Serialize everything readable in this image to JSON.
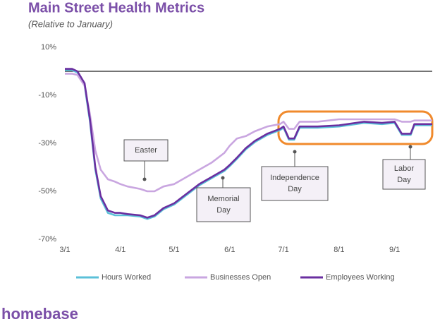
{
  "chart_data": {
    "type": "line",
    "title": "Main Street Health Metrics",
    "subtitle": "(Relative to January)",
    "brand": "homebase",
    "x": [
      "3/1",
      "3/5",
      "3/8",
      "3/12",
      "3/15",
      "3/18",
      "3/21",
      "3/25",
      "3/29",
      "4/1",
      "4/5",
      "4/12",
      "4/16",
      "4/20",
      "4/25",
      "5/1",
      "5/8",
      "5/15",
      "5/22",
      "5/29",
      "6/1",
      "6/5",
      "6/10",
      "6/15",
      "6/22",
      "6/29",
      "7/1",
      "7/4",
      "7/7",
      "7/10",
      "7/20",
      "8/1",
      "8/15",
      "8/25",
      "9/1",
      "9/5",
      "9/10",
      "9/12",
      "9/22"
    ],
    "xlim": [
      "3/1",
      "9/22"
    ],
    "xticks": [
      "3/1",
      "4/1",
      "5/1",
      "6/1",
      "7/1",
      "8/1",
      "9/1"
    ],
    "ylim": [
      -70,
      10
    ],
    "yticks": [
      {
        "value": 10,
        "label": "10%"
      },
      {
        "value": -10,
        "label": "-10%"
      },
      {
        "value": -30,
        "label": "-30%"
      },
      {
        "value": -50,
        "label": "-50%"
      },
      {
        "value": -70,
        "label": "-70%"
      }
    ],
    "reference_line": 0,
    "series": [
      {
        "name": "Hours Worked",
        "color": "#5bc0d8",
        "values": [
          0.5,
          0.5,
          -0.5,
          -6,
          -21,
          -41,
          -53,
          -59,
          -60,
          -60,
          -60,
          -60.5,
          -61.5,
          -60.5,
          -57.5,
          -55.5,
          -51.5,
          -47.5,
          -44.5,
          -41.5,
          -39.5,
          -36.5,
          -32.5,
          -29.5,
          -26.5,
          -24.5,
          -23.5,
          -28.5,
          -28.5,
          -23.5,
          -23.5,
          -23,
          -21.5,
          -22,
          -21.5,
          -26.5,
          -26.5,
          -22.5,
          -22.5
        ]
      },
      {
        "name": "Businesses Open",
        "color": "#c9a6e0",
        "values": [
          -1,
          -1,
          -1.5,
          -6,
          -18,
          -33,
          -41,
          -45,
          -46,
          -47,
          -48,
          -49,
          -50,
          -50,
          -48,
          -47,
          -44,
          -41,
          -38,
          -34,
          -31,
          -28,
          -27,
          -25,
          -23,
          -22,
          -21,
          -24,
          -24,
          -21,
          -21,
          -20,
          -20,
          -20,
          -20,
          -21,
          -21,
          -20.5,
          -20.5
        ]
      },
      {
        "name": "Employees Working",
        "color": "#6a2fa0",
        "values": [
          1,
          1,
          0,
          -5,
          -20,
          -40,
          -52,
          -58,
          -59,
          -59,
          -59.5,
          -60,
          -61,
          -60,
          -57,
          -55,
          -51,
          -47,
          -44,
          -41,
          -39,
          -36,
          -32,
          -29,
          -26,
          -24,
          -23,
          -28,
          -28,
          -23,
          -23,
          -22.5,
          -21,
          -21.5,
          -21,
          -26,
          -26,
          -22,
          -22
        ]
      }
    ],
    "annotations": [
      [
        "Easter"
      ],
      [
        "Memorial",
        "Day"
      ],
      [
        "Independence",
        "Day"
      ],
      [
        "Labor",
        "Day"
      ]
    ]
  }
}
